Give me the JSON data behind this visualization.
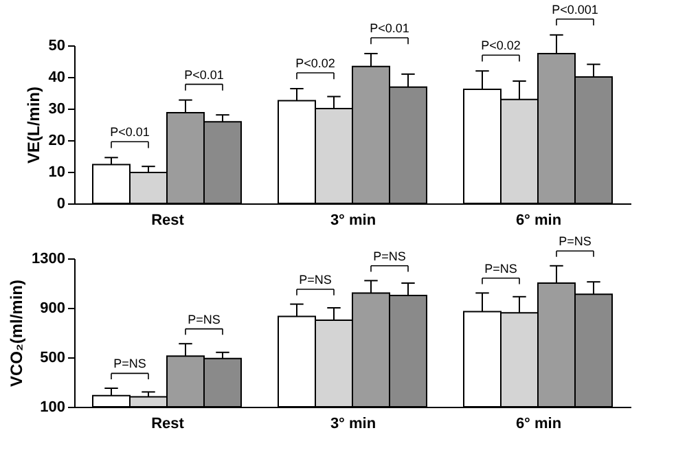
{
  "chart_data": [
    {
      "type": "bar",
      "ylabel": "VE(L/min)",
      "categories": [
        "Rest",
        "3° min",
        "6° min"
      ],
      "ylim": [
        0,
        50
      ],
      "yticks": [
        0,
        10,
        20,
        30,
        40,
        50
      ],
      "grid": false,
      "legend": false,
      "series": [
        {
          "color": "#ffffff",
          "values": [
            12.3,
            32.5,
            36.1
          ],
          "errors": [
            2.2,
            3.8,
            5.8
          ]
        },
        {
          "color": "#d4d4d4",
          "values": [
            9.8,
            30.0,
            32.9
          ],
          "errors": [
            1.9,
            3.8,
            5.8
          ]
        },
        {
          "color": "#9c9c9c",
          "values": [
            28.7,
            43.3,
            47.4
          ],
          "errors": [
            4.0,
            4.1,
            5.9
          ]
        },
        {
          "color": "#8a8a8a",
          "values": [
            25.8,
            36.8,
            40.0
          ],
          "errors": [
            2.2,
            4.1,
            4.0
          ]
        }
      ],
      "annotations": [
        "P<0.01",
        "P<0.01",
        "P<0.02",
        "P<0.01",
        "P<0.02",
        "P<0.001"
      ]
    },
    {
      "type": "bar",
      "ylabel": "VCO₂(ml/min)",
      "categories": [
        "Rest",
        "3° min",
        "6° min"
      ],
      "ylim": [
        100,
        1300
      ],
      "yticks": [
        100,
        500,
        900,
        1300
      ],
      "grid": false,
      "legend": false,
      "series": [
        {
          "color": "#ffffff",
          "values": [
            190,
            830,
            870
          ],
          "errors": [
            60,
            100,
            150
          ]
        },
        {
          "color": "#d4d4d4",
          "values": [
            180,
            800,
            860
          ],
          "errors": [
            40,
            100,
            130
          ]
        },
        {
          "color": "#9c9c9c",
          "values": [
            510,
            1020,
            1100
          ],
          "errors": [
            100,
            100,
            140
          ]
        },
        {
          "color": "#8a8a8a",
          "values": [
            490,
            1000,
            1010
          ],
          "errors": [
            50,
            100,
            100
          ]
        }
      ],
      "annotations": [
        "P=NS",
        "P=NS",
        "P=NS",
        "P=NS",
        "P=NS",
        "P=NS"
      ]
    }
  ]
}
